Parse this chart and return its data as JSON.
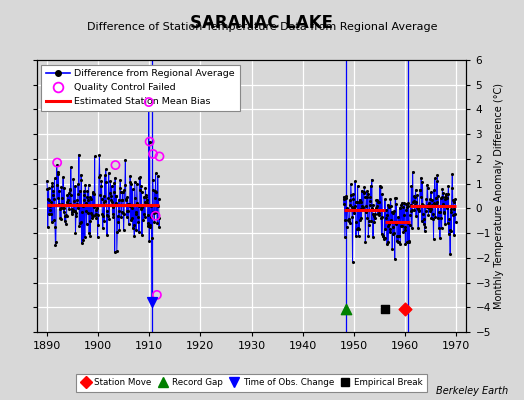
{
  "title": "SARANAC LAKE",
  "subtitle": "Difference of Station Temperature Data from Regional Average",
  "ylabel": "Monthly Temperature Anomaly Difference (°C)",
  "xlim": [
    1888,
    1972
  ],
  "ylim": [
    -5,
    6
  ],
  "yticks": [
    -5,
    -4,
    -3,
    -2,
    -1,
    0,
    1,
    2,
    3,
    4,
    5,
    6
  ],
  "xticks": [
    1890,
    1900,
    1910,
    1920,
    1930,
    1940,
    1950,
    1960,
    1970
  ],
  "bg_color": "#d8d8d8",
  "plot_bg_color": "#d8d8d8",
  "grid_color": "#ffffff",
  "bias1_start": 1890,
  "bias1_end": 1912,
  "bias1_value": 0.15,
  "bias2_start": 1948,
  "bias2_end": 1956,
  "bias2_value": -0.05,
  "bias3_start": 1956,
  "bias3_end": 1961,
  "bias3_value": -0.55,
  "bias4_start": 1961,
  "bias4_end": 1970,
  "bias4_value": 0.1,
  "watermark": "Berkeley Earth"
}
